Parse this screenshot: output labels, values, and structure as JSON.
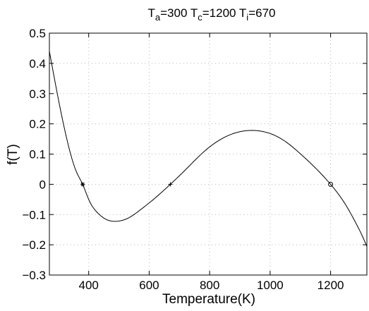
{
  "chart_data": {
    "type": "line",
    "title": {
      "parts": [
        {
          "text": "T",
          "sub": "a",
          "value": "=300"
        },
        {
          "text": " T",
          "sub": "c",
          "value": "=1200"
        },
        {
          "text": " T",
          "sub": "i",
          "value": "=670"
        }
      ]
    },
    "xlabel": "Temperature(K)",
    "ylabel": "f(T)",
    "xlim": [
      270,
      1320
    ],
    "ylim": [
      -0.3,
      0.5
    ],
    "xticks": [
      400,
      600,
      800,
      1000,
      1200
    ],
    "yticks": [
      -0.3,
      -0.2,
      -0.1,
      0,
      0.1,
      0.2,
      0.3,
      0.4,
      0.5
    ],
    "xtick_labels": [
      "400",
      "600",
      "800",
      "1000",
      "1200"
    ],
    "ytick_labels": [
      "−0.3",
      "−0.2",
      "−0.1",
      "0",
      "0.1",
      "0.2",
      "0.3",
      "0.4",
      "0.5"
    ],
    "grid": true,
    "series": [
      {
        "x": [
          270,
          300,
          330,
          360,
          380,
          400,
          430,
          460,
          495,
          530,
          570,
          620,
          670,
          720,
          780,
          850,
          900,
          950,
          1000,
          1050,
          1100,
          1150,
          1200,
          1250,
          1300,
          1320
        ],
        "y": [
          0.44,
          0.28,
          0.14,
          0.04,
          0.0,
          -0.05,
          -0.095,
          -0.117,
          -0.122,
          -0.112,
          -0.085,
          -0.045,
          0.0,
          0.048,
          0.107,
          0.156,
          0.174,
          0.178,
          0.168,
          0.142,
          0.101,
          0.054,
          0.0,
          -0.068,
          -0.16,
          -0.205
        ],
        "color": "#000000"
      }
    ],
    "markers": [
      {
        "x": 380,
        "y": 0,
        "symbol": "asterisk"
      },
      {
        "x": 670,
        "y": 0,
        "symbol": "plus"
      },
      {
        "x": 1200,
        "y": 0,
        "symbol": "circle"
      }
    ]
  }
}
